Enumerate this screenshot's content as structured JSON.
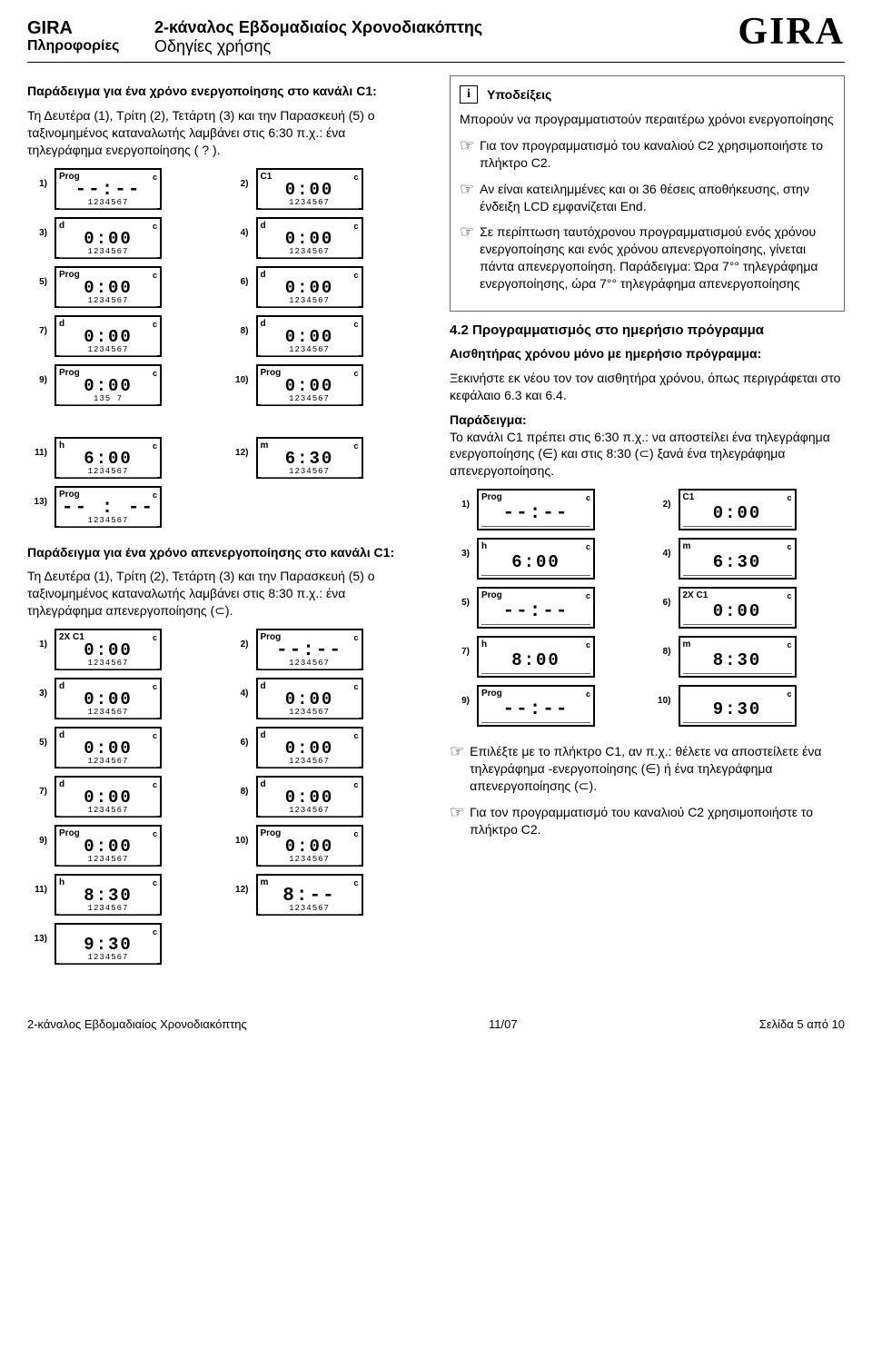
{
  "header": {
    "brand_top": "GIRA",
    "brand_sub": "Πληροφορίες",
    "title_line1": "2-κάναλος Εβδομαδιαίος Χρονοδιακόπτης",
    "title_line2": "Οδηγίες χρήσης",
    "logo": "GIRA"
  },
  "left": {
    "ex1_title": "Παράδειγμα για ένα χρόνο ενεργοποίησης στο κανάλι C1:",
    "ex1_body": "Τη Δευτέρα (1), Τρίτη (2), Τετάρτη (3) και την Παρασκευή (5) ο ταξινομημένος καταναλωτής λαμβάνει στις 6:30 π.χ.: ένα τηλεγράφημα ενεργοποίησης ( ? ).",
    "ex2_title": "Παράδειγμα για ένα χρόνο απενεργοποίησης στο κανάλι C1:",
    "ex2_body": "Τη Δευτέρα (1), Τρίτη (2), Τετάρτη (3) και την Παρασκευή (5) ο ταξινομημένος καταναλωτής λαμβάνει στις 8:30 π.χ.: ένα τηλεγράφημα απενεργοποίησης (⊂)."
  },
  "right": {
    "info_title": "Υποδείξεις",
    "info_line1": "Μπορούν να προγραμματιστούν περαιτέρω χρόνοι ενεργοποίησης",
    "hand1": "Για τον προγραμματισμό του καναλιού C2 χρησιμοποιήστε το πλήκτρο C2.",
    "hand2": "Αν είναι κατειλημμένες και οι 36 θέσεις αποθήκευσης, στην ένδειξη LCD εμφανίζεται End.",
    "hand3": "Σε περίπτωση ταυτόχρονου προγραμματισμού ενός χρόνου ενεργοποίησης και ενός χρόνου απενεργοποίησης, γίνεται πάντα απενεργοποίηση. Παράδειγμα:\nΏρα 7°° τηλεγράφημα ενεργοποίησης, ώρα 7°° τηλεγράφημα απενεργοποίησης",
    "sect_4_2": "4.2  Προγραμματισμός στο ημερήσιο πρόγραμμα",
    "daily_title": "Αισθητήρας χρόνου μόνο με ημερήσιο πρόγραμμα:",
    "daily_body1": "Ξεκινήστε εκ νέου τον τον αισθητήρα χρόνου, όπως περιγράφεται στο κεφάλαιο 6.3 και 6.4.",
    "daily_ex_label": "Παράδειγμα:",
    "daily_ex_body": "Το κανάλι C1 πρέπει στις 6:30 π.χ.: να αποστείλει ένα τηλεγράφημα ενεργοποίησης (∈) και στις 8:30 (⊂) ξανά ένα τηλεγράφημα απενεργοποίησης.",
    "hand4": "Επιλέξτε με το πλήκτρο C1, αν π.χ.: θέλετε να αποστείλετε ένα τηλεγράφημα -ενεργοποίησης (∈) ή ένα τηλεγράφημα απενεργοποίησης (⊂).",
    "hand5": "Για τον προγραμματισμό του καναλιού C2 χρησιμοποιήστε το πλήκτρο C2."
  },
  "footer": {
    "left": "2-κάναλος Εβδομαδιαίος Χρονοδιακόπτης",
    "center": "11/07",
    "right": "Σελίδα 5 από 10"
  },
  "lcd_block_A": [
    [
      "1)",
      "Prog",
      "--:--",
      "1234567",
      "2)",
      "C1",
      "0:00",
      "1234567"
    ],
    [
      "3)",
      "d",
      "0:00",
      "1234567",
      "4)",
      "d",
      "0:00",
      "1234567"
    ],
    [
      "5)",
      "Prog",
      "0:00",
      "1234567",
      "6)",
      "d",
      "0:00",
      "1234567"
    ],
    [
      "7)",
      "d",
      "0:00",
      "1234567",
      "8)",
      "d",
      "0:00",
      "1234567"
    ],
    [
      "9)",
      "Prog",
      "0:00",
      "135 7",
      "10)",
      "Prog",
      "0:00",
      "1234567"
    ]
  ],
  "lcd_block_B": [
    [
      "11)",
      "h",
      "6:00",
      "1234567",
      "12)",
      "m",
      "6:30",
      "1234567"
    ],
    [
      "13)",
      "Prog",
      "-- : --",
      "1234567",
      "",
      "",
      "",
      ""
    ]
  ],
  "lcd_block_C": [
    [
      "1)",
      "2X C1",
      "0:00",
      "1234567",
      "2)",
      "Prog",
      "--:--",
      "1234567"
    ],
    [
      "3)",
      "d",
      "0:00",
      "1234567",
      "4)",
      "d",
      "0:00",
      "1234567"
    ],
    [
      "5)",
      "d",
      "0:00",
      "1234567",
      "6)",
      "d",
      "0:00",
      "1234567"
    ],
    [
      "7)",
      "d",
      "0:00",
      "1234567",
      "8)",
      "d",
      "0:00",
      "1234567"
    ],
    [
      "9)",
      "Prog",
      "0:00",
      "1234567",
      "10)",
      "Prog",
      "0:00",
      "1234567"
    ],
    [
      "11)",
      "h",
      "8:30",
      "1234567",
      "12)",
      "m",
      "8:-- ",
      "1234567"
    ],
    [
      "13)",
      "",
      "9:30",
      "1234567",
      "",
      "",
      "",
      ""
    ]
  ],
  "lcd_block_D": [
    [
      "1)",
      "Prog",
      "--:--",
      "",
      "2)",
      "C1",
      "0:00",
      ""
    ],
    [
      "3)",
      "h",
      "6:00",
      "",
      "4)",
      "m",
      "6:30",
      ""
    ],
    [
      "5)",
      "Prog",
      "--:--",
      "",
      "6)",
      "2X C1",
      "0:00",
      ""
    ],
    [
      "7)",
      "h",
      "8:00",
      "",
      "8)",
      "m",
      "8:30",
      ""
    ],
    [
      "9)",
      "Prog",
      "--:--",
      "",
      "10)",
      "",
      "9:30",
      ""
    ]
  ]
}
